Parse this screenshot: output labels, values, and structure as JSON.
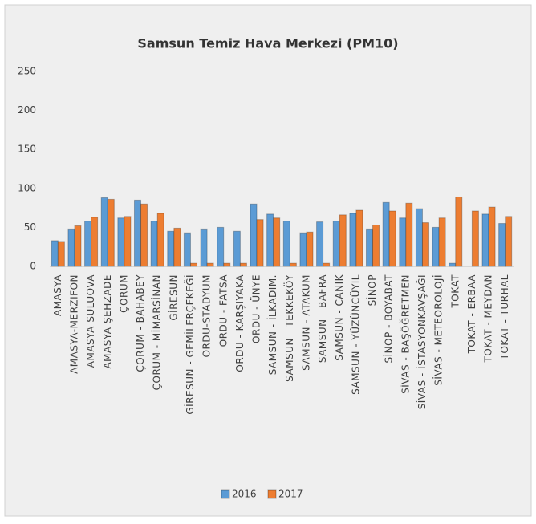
{
  "chart_data": {
    "type": "bar",
    "title": "Samsun Temiz Hava Merkezi (PM10)",
    "categories": [
      "AMASYA",
      "AMASYA-MERZIFON",
      "AMASYA-SULUOVA",
      "AMASYA-ŞEHZADE",
      "ÇORUM",
      "ÇORUM - BAHABEY",
      "ÇORUM - MİMARSİNAN",
      "GİRESUN",
      "GİRESUN - GEMİLERÇEKEĞİ",
      "ORDU-STADYUM",
      "ORDU - FATSA",
      "ORDU - KARŞIYAKA",
      "ORDU - ÜNYE",
      "SAMSUN - İLKADIM.",
      "SAMSUN - TEKKEKÖY",
      "SAMSUN - ATAKUM",
      "SAMSUN - BAFRA",
      "SAMSUN - CANIK",
      "SAMSUN - YÜZÜNCÜYIL",
      "SİNOP",
      "SİNOP - BOYABAT",
      "SİVAS - BAŞÖĞRETMEN",
      "SİVAS - İSTASYONKAVŞAĞI",
      "SİVAS - METEOROLOJİ",
      "TOKAT",
      "TOKAT - ERBAA",
      "TOKAT - MEYDAN",
      "TOKAT - TURHAL"
    ],
    "series": [
      {
        "name": "2016",
        "color": "#5b9bd5",
        "values": [
          33,
          48,
          58,
          88,
          62,
          85,
          58,
          45,
          43,
          48,
          50,
          45,
          80,
          67,
          58,
          43,
          57,
          58,
          68,
          48,
          82,
          62,
          74,
          50,
          4,
          null,
          67,
          55
        ]
      },
      {
        "name": "2017",
        "color": "#ed7d31",
        "values": [
          32,
          52,
          63,
          86,
          64,
          80,
          68,
          49,
          4,
          4,
          4,
          4,
          60,
          62,
          4,
          44,
          4,
          66,
          72,
          53,
          71,
          81,
          56,
          62,
          89,
          71,
          76,
          64
        ]
      }
    ],
    "ylim": [
      0,
      250
    ],
    "yticks": [
      0,
      50,
      100,
      150,
      200,
      250
    ],
    "legend": "bottom"
  }
}
